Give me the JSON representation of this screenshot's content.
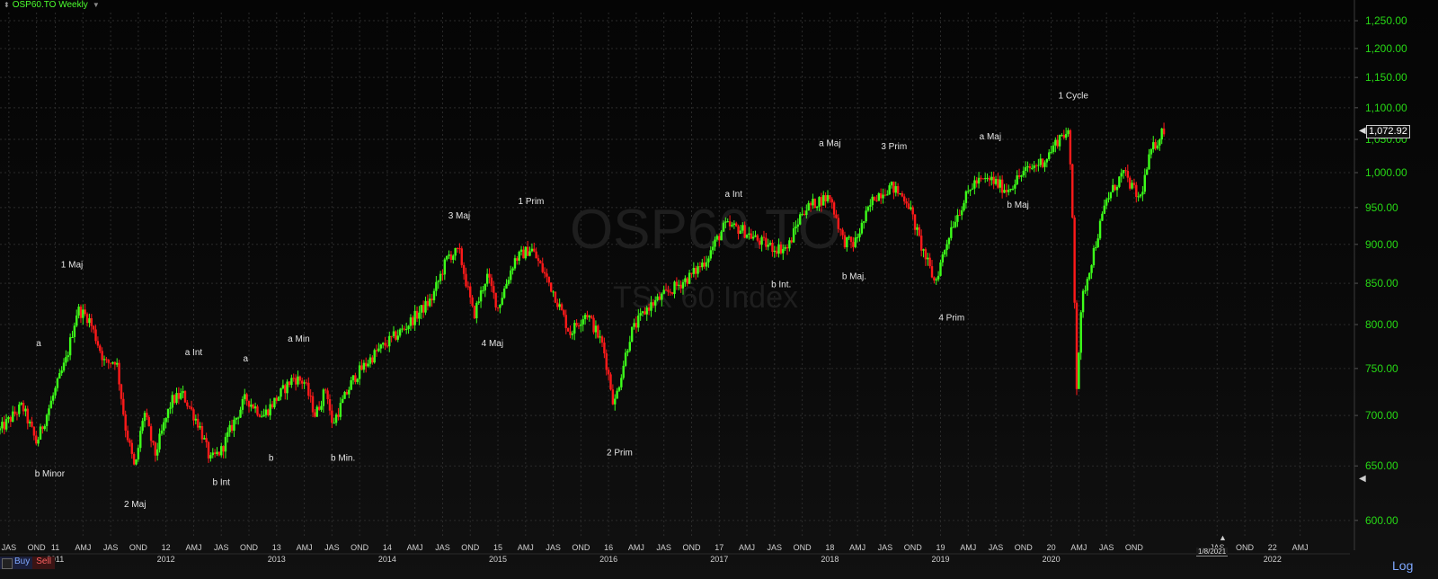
{
  "header": {
    "symbol": "OSP60.TO Weekly",
    "arrows_icon": "up-down-arrows-icon",
    "caret_icon": "chevron-down-icon"
  },
  "watermark": {
    "symbol": "OSP60.TO",
    "name": "TSX 60 Index"
  },
  "buttons": {
    "buy": "Buy",
    "sell": "Sell",
    "scale": "Log"
  },
  "last_price": "1,072.92",
  "current_date": "1/8/2021",
  "colors": {
    "up": "#3dff1a",
    "down": "#ff1a1a",
    "axis_text": "#27d915",
    "grid": "#2b2b2b",
    "label": "#e6e6e6"
  },
  "chart_data": {
    "type": "candlestick",
    "timeframe": "Weekly",
    "y_scale": "log",
    "ylim": [
      585,
      1265
    ],
    "xlim": [
      2010.5,
      2022.7
    ],
    "y_ticks": [
      "600.00",
      "650.00",
      "700.00",
      "750.00",
      "800.00",
      "850.00",
      "900.00",
      "950.00",
      "1,000.00",
      "1,050.00",
      "1,100.00",
      "1,150.00",
      "1,200.00",
      "1,250.00"
    ],
    "y_tick_values": [
      600,
      650,
      700,
      750,
      800,
      850,
      900,
      950,
      1000,
      1050,
      1100,
      1150,
      1200,
      1250
    ],
    "x_ticks_top": [
      {
        "x": 2010.58,
        "text": "JAS"
      },
      {
        "x": 2010.83,
        "text": "OND"
      },
      {
        "x": 2011.0,
        "text": "11"
      },
      {
        "x": 2011.25,
        "text": "AMJ"
      },
      {
        "x": 2011.5,
        "text": "JAS"
      },
      {
        "x": 2011.75,
        "text": "OND"
      },
      {
        "x": 2012.0,
        "text": "12"
      },
      {
        "x": 2012.25,
        "text": "AMJ"
      },
      {
        "x": 2012.5,
        "text": "JAS"
      },
      {
        "x": 2012.75,
        "text": "OND"
      },
      {
        "x": 2013.0,
        "text": "13"
      },
      {
        "x": 2013.25,
        "text": "AMJ"
      },
      {
        "x": 2013.5,
        "text": "JAS"
      },
      {
        "x": 2013.75,
        "text": "OND"
      },
      {
        "x": 2014.0,
        "text": "14"
      },
      {
        "x": 2014.25,
        "text": "AMJ"
      },
      {
        "x": 2014.5,
        "text": "JAS"
      },
      {
        "x": 2014.75,
        "text": "OND"
      },
      {
        "x": 2015.0,
        "text": "15"
      },
      {
        "x": 2015.25,
        "text": "AMJ"
      },
      {
        "x": 2015.5,
        "text": "JAS"
      },
      {
        "x": 2015.75,
        "text": "OND"
      },
      {
        "x": 2016.0,
        "text": "16"
      },
      {
        "x": 2016.25,
        "text": "AMJ"
      },
      {
        "x": 2016.5,
        "text": "JAS"
      },
      {
        "x": 2016.75,
        "text": "OND"
      },
      {
        "x": 2017.0,
        "text": "17"
      },
      {
        "x": 2017.25,
        "text": "AMJ"
      },
      {
        "x": 2017.5,
        "text": "JAS"
      },
      {
        "x": 2017.75,
        "text": "OND"
      },
      {
        "x": 2018.0,
        "text": "18"
      },
      {
        "x": 2018.25,
        "text": "AMJ"
      },
      {
        "x": 2018.5,
        "text": "JAS"
      },
      {
        "x": 2018.75,
        "text": "OND"
      },
      {
        "x": 2019.0,
        "text": "19"
      },
      {
        "x": 2019.25,
        "text": "AMJ"
      },
      {
        "x": 2019.5,
        "text": "JAS"
      },
      {
        "x": 2019.75,
        "text": "OND"
      },
      {
        "x": 2020.0,
        "text": "20"
      },
      {
        "x": 2020.25,
        "text": "AMJ"
      },
      {
        "x": 2020.5,
        "text": "JAS"
      },
      {
        "x": 2020.75,
        "text": "OND"
      },
      {
        "x": 2021.5,
        "text": "JAS"
      },
      {
        "x": 2021.75,
        "text": "OND"
      },
      {
        "x": 2022.0,
        "text": "22"
      },
      {
        "x": 2022.25,
        "text": "AMJ"
      }
    ],
    "x_ticks_years": [
      {
        "x": 2011.0,
        "text": "2011"
      },
      {
        "x": 2012.0,
        "text": "2012"
      },
      {
        "x": 2013.0,
        "text": "2013"
      },
      {
        "x": 2014.0,
        "text": "2014"
      },
      {
        "x": 2015.0,
        "text": "2015"
      },
      {
        "x": 2016.0,
        "text": "2016"
      },
      {
        "x": 2017.0,
        "text": "2017"
      },
      {
        "x": 2018.0,
        "text": "2018"
      },
      {
        "x": 2019.0,
        "text": "2019"
      },
      {
        "x": 2020.0,
        "text": "2020"
      },
      {
        "x": 2022.0,
        "text": "2022"
      }
    ],
    "anchors": [
      {
        "x": 2010.5,
        "y": 685
      },
      {
        "x": 2010.7,
        "y": 710
      },
      {
        "x": 2010.83,
        "y": 672
      },
      {
        "x": 2010.95,
        "y": 710
      },
      {
        "x": 2011.1,
        "y": 760
      },
      {
        "x": 2011.2,
        "y": 818
      },
      {
        "x": 2011.3,
        "y": 808
      },
      {
        "x": 2011.45,
        "y": 755
      },
      {
        "x": 2011.55,
        "y": 760
      },
      {
        "x": 2011.63,
        "y": 690
      },
      {
        "x": 2011.72,
        "y": 645
      },
      {
        "x": 2011.8,
        "y": 705
      },
      {
        "x": 2011.9,
        "y": 660
      },
      {
        "x": 2012.05,
        "y": 715
      },
      {
        "x": 2012.15,
        "y": 722
      },
      {
        "x": 2012.3,
        "y": 690
      },
      {
        "x": 2012.4,
        "y": 655
      },
      {
        "x": 2012.5,
        "y": 665
      },
      {
        "x": 2012.6,
        "y": 690
      },
      {
        "x": 2012.72,
        "y": 718
      },
      {
        "x": 2012.88,
        "y": 700
      },
      {
        "x": 2013.05,
        "y": 725
      },
      {
        "x": 2013.15,
        "y": 740
      },
      {
        "x": 2013.25,
        "y": 735
      },
      {
        "x": 2013.35,
        "y": 700
      },
      {
        "x": 2013.45,
        "y": 730
      },
      {
        "x": 2013.5,
        "y": 690
      },
      {
        "x": 2013.7,
        "y": 740
      },
      {
        "x": 2013.9,
        "y": 768
      },
      {
        "x": 2014.15,
        "y": 795
      },
      {
        "x": 2014.4,
        "y": 830
      },
      {
        "x": 2014.55,
        "y": 885
      },
      {
        "x": 2014.65,
        "y": 890
      },
      {
        "x": 2014.78,
        "y": 810
      },
      {
        "x": 2014.9,
        "y": 860
      },
      {
        "x": 2015.0,
        "y": 820
      },
      {
        "x": 2015.15,
        "y": 880
      },
      {
        "x": 2015.3,
        "y": 895
      },
      {
        "x": 2015.5,
        "y": 840
      },
      {
        "x": 2015.65,
        "y": 790
      },
      {
        "x": 2015.8,
        "y": 815
      },
      {
        "x": 2015.95,
        "y": 775
      },
      {
        "x": 2016.05,
        "y": 710
      },
      {
        "x": 2016.2,
        "y": 790
      },
      {
        "x": 2016.35,
        "y": 820
      },
      {
        "x": 2016.55,
        "y": 840
      },
      {
        "x": 2016.75,
        "y": 860
      },
      {
        "x": 2016.88,
        "y": 880
      },
      {
        "x": 2017.05,
        "y": 925
      },
      {
        "x": 2017.2,
        "y": 920
      },
      {
        "x": 2017.35,
        "y": 905
      },
      {
        "x": 2017.5,
        "y": 895
      },
      {
        "x": 2017.62,
        "y": 895
      },
      {
        "x": 2017.75,
        "y": 945
      },
      {
        "x": 2017.9,
        "y": 960
      },
      {
        "x": 2018.0,
        "y": 965
      },
      {
        "x": 2018.12,
        "y": 905
      },
      {
        "x": 2018.22,
        "y": 900
      },
      {
        "x": 2018.4,
        "y": 965
      },
      {
        "x": 2018.55,
        "y": 980
      },
      {
        "x": 2018.7,
        "y": 960
      },
      {
        "x": 2018.82,
        "y": 900
      },
      {
        "x": 2018.95,
        "y": 850
      },
      {
        "x": 2019.1,
        "y": 925
      },
      {
        "x": 2019.3,
        "y": 985
      },
      {
        "x": 2019.45,
        "y": 990
      },
      {
        "x": 2019.6,
        "y": 975
      },
      {
        "x": 2019.75,
        "y": 1000
      },
      {
        "x": 2019.95,
        "y": 1020
      },
      {
        "x": 2020.1,
        "y": 1060
      },
      {
        "x": 2020.16,
        "y": 1055
      },
      {
        "x": 2020.19,
        "y": 950
      },
      {
        "x": 2020.23,
        "y": 730
      },
      {
        "x": 2020.28,
        "y": 830
      },
      {
        "x": 2020.4,
        "y": 900
      },
      {
        "x": 2020.5,
        "y": 960
      },
      {
        "x": 2020.65,
        "y": 1000
      },
      {
        "x": 2020.8,
        "y": 960
      },
      {
        "x": 2020.9,
        "y": 1030
      },
      {
        "x": 2021.03,
        "y": 1070
      }
    ],
    "annotations": [
      {
        "x": 2010.85,
        "y": 775,
        "text": "a"
      },
      {
        "x": 2010.95,
        "y": 640,
        "text": "b Minor"
      },
      {
        "x": 2011.15,
        "y": 870,
        "text": "1 Maj"
      },
      {
        "x": 2011.72,
        "y": 612,
        "text": "2 Maj"
      },
      {
        "x": 2012.25,
        "y": 765,
        "text": "a Int"
      },
      {
        "x": 2012.5,
        "y": 632,
        "text": "b Int"
      },
      {
        "x": 2012.72,
        "y": 758,
        "text": "a"
      },
      {
        "x": 2012.95,
        "y": 655,
        "text": "b"
      },
      {
        "x": 2013.2,
        "y": 780,
        "text": "a Min"
      },
      {
        "x": 2013.6,
        "y": 655,
        "text": "b Min."
      },
      {
        "x": 2014.65,
        "y": 935,
        "text": "3 Maj"
      },
      {
        "x": 2014.95,
        "y": 775,
        "text": "4 Maj"
      },
      {
        "x": 2015.3,
        "y": 955,
        "text": "1 Prim"
      },
      {
        "x": 2016.1,
        "y": 660,
        "text": "2 Prim"
      },
      {
        "x": 2017.13,
        "y": 965,
        "text": "a Int"
      },
      {
        "x": 2017.56,
        "y": 845,
        "text": "b Int."
      },
      {
        "x": 2018.0,
        "y": 1040,
        "text": "a Maj"
      },
      {
        "x": 2018.22,
        "y": 855,
        "text": "b Maj."
      },
      {
        "x": 2018.58,
        "y": 1035,
        "text": "3 Prim"
      },
      {
        "x": 2019.1,
        "y": 805,
        "text": "4 Prim"
      },
      {
        "x": 2019.45,
        "y": 1050,
        "text": "a Maj"
      },
      {
        "x": 2019.7,
        "y": 950,
        "text": "b Maj"
      },
      {
        "x": 2020.2,
        "y": 1115,
        "text": "1 Cycle"
      }
    ]
  }
}
